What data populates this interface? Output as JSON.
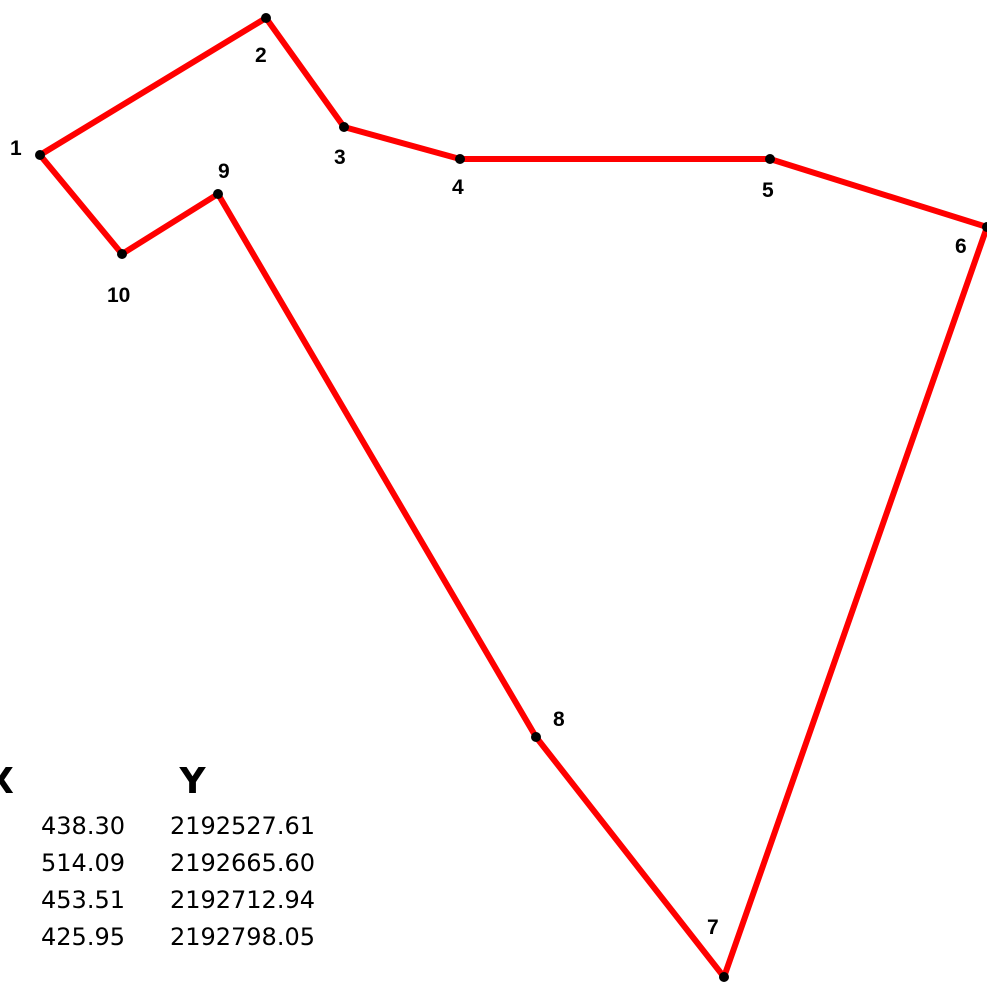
{
  "diagram": {
    "line_color": "#ff0000",
    "vertex_color": "#000000",
    "vertices": [
      {
        "label": "1"
      },
      {
        "label": "2"
      },
      {
        "label": "3"
      },
      {
        "label": "4"
      },
      {
        "label": "5"
      },
      {
        "label": "6"
      },
      {
        "label": "7"
      },
      {
        "label": "8"
      },
      {
        "label": "9"
      },
      {
        "label": "10"
      }
    ]
  },
  "coordinates_table": {
    "header_x": "X",
    "header_y": "Y",
    "rows": [
      {
        "x": "438.30",
        "y": "2192527.61"
      },
      {
        "x": "514.09",
        "y": "2192665.60"
      },
      {
        "x": "453.51",
        "y": "2192712.94"
      },
      {
        "x": "425.95",
        "y": "2192798.05"
      }
    ]
  }
}
